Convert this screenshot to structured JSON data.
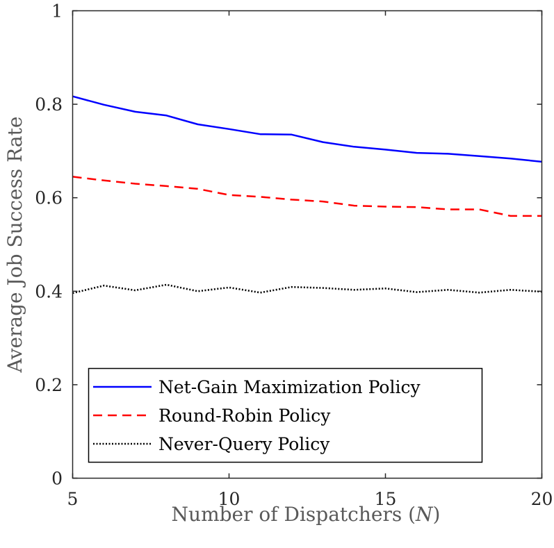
{
  "chart_data": {
    "type": "line",
    "title": "",
    "xlabel": "Number of Dispatchers",
    "xlabel_var": "N",
    "ylabel": "Average Job Success Rate",
    "xlim": [
      5,
      20
    ],
    "ylim": [
      0,
      1
    ],
    "xticks": [
      5,
      10,
      15,
      20
    ],
    "yticks": [
      0,
      0.2,
      0.4,
      0.6,
      0.8,
      1
    ],
    "ytick_labels": [
      "0",
      "0.2",
      "0.4",
      "0.6",
      "0.8",
      "1"
    ],
    "grid": false,
    "legend_position": "bottom-left",
    "x": [
      5,
      6,
      7,
      8,
      9,
      10,
      11,
      12,
      13,
      14,
      15,
      16,
      17,
      18,
      19,
      20
    ],
    "series": [
      {
        "name": "Net-Gain Maximization Policy",
        "color": "#0000ff",
        "style": "solid",
        "values": [
          0.817,
          0.799,
          0.784,
          0.776,
          0.757,
          0.747,
          0.736,
          0.735,
          0.719,
          0.709,
          0.703,
          0.696,
          0.694,
          0.689,
          0.684,
          0.677
        ]
      },
      {
        "name": "Round-Robin Policy",
        "color": "#ff0000",
        "style": "dashed",
        "values": [
          0.645,
          0.637,
          0.63,
          0.625,
          0.619,
          0.606,
          0.602,
          0.596,
          0.592,
          0.583,
          0.581,
          0.58,
          0.575,
          0.575,
          0.561,
          0.561
        ]
      },
      {
        "name": "Never-Query Policy",
        "color": "#000000",
        "style": "dotted",
        "values": [
          0.396,
          0.412,
          0.402,
          0.414,
          0.4,
          0.408,
          0.397,
          0.409,
          0.407,
          0.403,
          0.406,
          0.398,
          0.403,
          0.397,
          0.403,
          0.399
        ]
      }
    ]
  }
}
